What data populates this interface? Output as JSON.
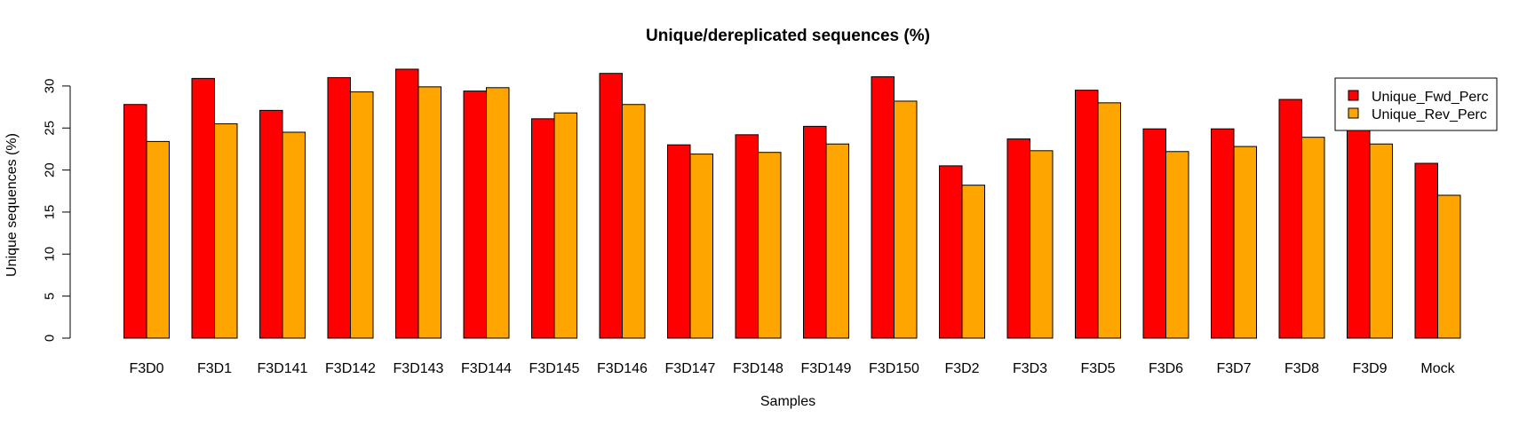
{
  "chart_data": {
    "type": "bar",
    "title": "Unique/dereplicated sequences (%)",
    "xlabel": "Samples",
    "ylabel": "Unique sequences (%)",
    "ylim": [
      0,
      30
    ],
    "yticks": [
      0,
      5,
      10,
      15,
      20,
      25,
      30
    ],
    "grid": false,
    "legend_position": "top-right",
    "categories": [
      "F3D0",
      "F3D1",
      "F3D141",
      "F3D142",
      "F3D143",
      "F3D144",
      "F3D145",
      "F3D146",
      "F3D147",
      "F3D148",
      "F3D149",
      "F3D150",
      "F3D2",
      "F3D3",
      "F3D5",
      "F3D6",
      "F3D7",
      "F3D8",
      "F3D9",
      "Mock"
    ],
    "series": [
      {
        "name": "Unique_Fwd_Perc",
        "color": "#ff0000",
        "values": [
          27.8,
          30.9,
          27.1,
          31.0,
          32.0,
          29.4,
          26.1,
          31.5,
          23.0,
          24.2,
          25.2,
          31.1,
          20.5,
          23.7,
          29.5,
          24.9,
          24.9,
          28.4,
          26.5,
          20.8
        ]
      },
      {
        "name": "Unique_Rev_Perc",
        "color": "#ffa500",
        "values": [
          23.4,
          25.5,
          24.5,
          29.3,
          29.9,
          29.8,
          26.8,
          27.8,
          21.9,
          22.1,
          23.1,
          28.2,
          18.2,
          22.3,
          28.0,
          22.2,
          22.8,
          23.9,
          23.1,
          17.0
        ]
      }
    ]
  }
}
